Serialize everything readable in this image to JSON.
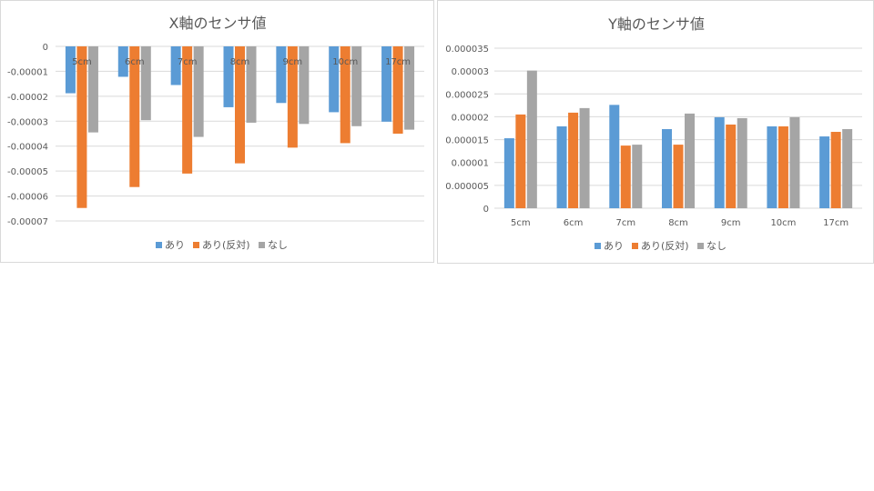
{
  "colors": {
    "ari": "#5b9bd5",
    "ari_reverse": "#ed7d31",
    "nashi": "#a5a5a5",
    "grid": "#d9d9d9",
    "axis_text": "#595959",
    "title_text": "#595959"
  },
  "chart_data": [
    {
      "type": "bar",
      "title": "X軸のセンサ値",
      "categories": [
        "5cm",
        "6cm",
        "7cm",
        "8cm",
        "9cm",
        "10cm",
        "17cm"
      ],
      "ylim": [
        -7e-05,
        0
      ],
      "yticks": [
        0,
        -1e-05,
        -2e-05,
        -3e-05,
        -4e-05,
        -5e-05,
        -6e-05,
        -7e-05
      ],
      "ytick_labels": [
        "0",
        "-0.00001",
        "-0.00002",
        "-0.00003",
        "-0.00004",
        "-0.00005",
        "-0.00006",
        "-0.00007"
      ],
      "grid": true,
      "legend_position": "bottom",
      "series": [
        {
          "name": "あり",
          "color": "#5b9bd5",
          "values": [
            -1.88e-05,
            -1.22e-05,
            -1.55e-05,
            -2.44e-05,
            -2.27e-05,
            -2.64e-05,
            -3.02e-05
          ]
        },
        {
          "name": "あり(反対)",
          "color": "#ed7d31",
          "values": [
            -6.48e-05,
            -5.64e-05,
            -5.1e-05,
            -4.69e-05,
            -4.06e-05,
            -3.88e-05,
            -3.5e-05
          ]
        },
        {
          "name": "なし",
          "color": "#a5a5a5",
          "values": [
            -3.45e-05,
            -2.96e-05,
            -3.63e-05,
            -3.06e-05,
            -3.11e-05,
            -3.2e-05,
            -3.34e-05
          ]
        }
      ]
    },
    {
      "type": "bar",
      "title": "Y軸のセンサ値",
      "categories": [
        "5cm",
        "6cm",
        "7cm",
        "8cm",
        "9cm",
        "10cm",
        "17cm"
      ],
      "ylim": [
        0,
        3.5e-05
      ],
      "yticks": [
        0,
        5e-06,
        1e-05,
        1.5e-05,
        2e-05,
        2.5e-05,
        3e-05,
        3.5e-05
      ],
      "ytick_labels": [
        "0",
        "0.000005",
        "0.00001",
        "0.000015",
        "0.00002",
        "0.000025",
        "0.00003",
        "0.000035"
      ],
      "grid": true,
      "legend_position": "bottom",
      "series": [
        {
          "name": "あり",
          "color": "#5b9bd5",
          "values": [
            1.53e-05,
            1.79e-05,
            2.26e-05,
            1.73e-05,
            1.99e-05,
            1.79e-05,
            1.57e-05
          ]
        },
        {
          "name": "あり(反対)",
          "color": "#ed7d31",
          "values": [
            2.05e-05,
            2.09e-05,
            1.37e-05,
            1.39e-05,
            1.83e-05,
            1.79e-05,
            1.67e-05
          ]
        },
        {
          "name": "なし",
          "color": "#a5a5a5",
          "values": [
            3.01e-05,
            2.19e-05,
            1.39e-05,
            2.07e-05,
            1.97e-05,
            1.99e-05,
            1.73e-05
          ]
        }
      ]
    }
  ]
}
